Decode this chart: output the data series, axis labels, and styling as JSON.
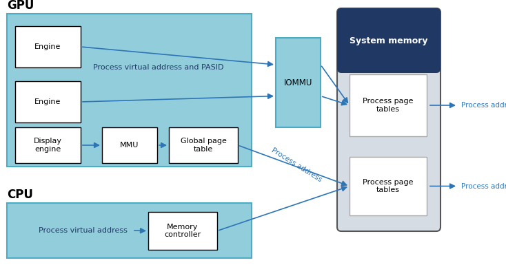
{
  "bg_color": "#ffffff",
  "light_blue": "#92cddc",
  "border_blue": "#4bacc6",
  "box_white": "#ffffff",
  "header_dark": "#1f3864",
  "sys_mem_gray": "#d6dce4",
  "sys_mem_border": "#595959",
  "arrow_col": "#2e75b6",
  "text_dark": "#1f3864",
  "gpu_label": "GPU",
  "cpu_label": "CPU",
  "iommu_label": "IOMMU",
  "sys_mem_label": "System memory",
  "engine1_label": "Engine",
  "engine2_label": "Engine",
  "display_engine_label": "Display\nengine",
  "mmu_label": "MMU",
  "global_page_label": "Global page\ntable",
  "proc_page1_label": "Process page\ntables",
  "proc_page2_label": "Process page\ntables",
  "mem_ctrl_label": "Memory\ncontroller",
  "pva_pasid_label": "Process virtual address and PASID",
  "pva_label": "Process virtual address",
  "proc_addr_label": "Process address",
  "proc_addr_diag_label": "Process address"
}
